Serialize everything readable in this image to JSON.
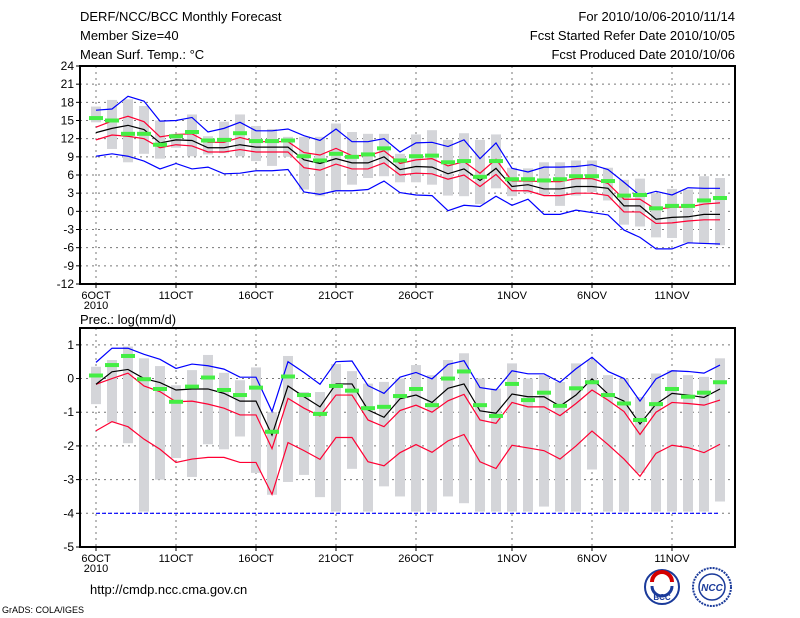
{
  "header": {
    "title": "DERF/NCC/BCC Monthly Forecast",
    "member_size": "Member Size=40",
    "variable": "Mean Surf. Temp.: °C",
    "period": "For 2010/10/06-2010/11/14",
    "refer_date": "Fcst Started Refer Date 2010/10/05",
    "produced_date": "Fcst Produced Date 2010/10/06"
  },
  "footer": {
    "url": "http://cmdp.ncc.cma.gov.cn",
    "credit": "GrADS: COLA/IGES",
    "logo_bcc": "BCC",
    "logo_ncc": "NCC"
  },
  "colors": {
    "ens_max_min": "#0000ff",
    "spread": "#ff0033",
    "mean": "#000000",
    "observed": "#44ee44",
    "bars": "#d4d5d9"
  },
  "chart_data": [
    {
      "type": "line",
      "title": "Mean Surf. Temp.: °C",
      "x_start": "2010-10-06",
      "n_days": 40,
      "x_tick_labels": [
        {
          "day": 0,
          "label": "6OCT",
          "sub": "2010"
        },
        {
          "day": 5,
          "label": "11OCT"
        },
        {
          "day": 10,
          "label": "16OCT"
        },
        {
          "day": 15,
          "label": "21OCT"
        },
        {
          "day": 20,
          "label": "26OCT"
        },
        {
          "day": 26,
          "label": "1NOV"
        },
        {
          "day": 31,
          "label": "6NOV"
        },
        {
          "day": 36,
          "label": "11NOV"
        }
      ],
      "ylim": [
        -12,
        24
      ],
      "y_ticks": [
        -12,
        -9,
        -6,
        -3,
        0,
        3,
        6,
        9,
        12,
        15,
        18,
        21,
        24
      ],
      "grid": true,
      "bars": {
        "high": [
          17.3,
          18.4,
          18.5,
          17.4,
          15.0,
          12.8,
          16.0,
          12.4,
          14.8,
          16.0,
          14.1,
          13.6,
          12.3,
          12.3,
          12.3,
          14.5,
          13.1,
          12.8,
          12.8,
          9.5,
          12.7,
          13.4,
          11.8,
          12.9,
          11.8,
          12.7,
          7.2,
          7.1,
          8.1,
          8.1,
          8.4,
          8.4,
          7.2,
          5.2,
          5.4,
          3.0,
          3.7,
          3.6,
          5.8,
          5.5
        ],
        "low": [
          14.7,
          10.3,
          8.1,
          9.5,
          8.7,
          10.5,
          9.1,
          9.4,
          9.6,
          9.1,
          8.3,
          7.5,
          9.0,
          3.6,
          2.5,
          3.4,
          4.4,
          5.5,
          5.8,
          4.8,
          4.8,
          4.4,
          2.6,
          2.5,
          1.2,
          3.8,
          2.5,
          3.0,
          2.7,
          0.9,
          2.6,
          3.2,
          1.8,
          -2.2,
          -2.5,
          -4.3,
          -4.4,
          -5.2,
          -5.4,
          -5.6
        ]
      },
      "series": [
        {
          "name": "ensemble max",
          "color": "#0000ff",
          "values": [
            16.7,
            16.9,
            19.0,
            18.2,
            14.9,
            15.0,
            15.5,
            13.1,
            13.7,
            14.7,
            13.3,
            13.3,
            13.6,
            12.5,
            11.7,
            13.6,
            11.5,
            11.5,
            12.0,
            9.8,
            11.3,
            11.4,
            10.7,
            11.8,
            8.7,
            11.3,
            7.1,
            6.5,
            7.3,
            7.3,
            7.4,
            7.7,
            6.9,
            4.8,
            2.6,
            3.3,
            2.7,
            3.9,
            3.8,
            3.8
          ]
        },
        {
          "name": "upper spread",
          "color": "#ff0033",
          "values": [
            13.9,
            14.9,
            15.7,
            14.8,
            12.3,
            12.7,
            12.8,
            11.4,
            11.4,
            12.2,
            11.5,
            11.5,
            11.5,
            9.7,
            9.3,
            10.4,
            9.2,
            9.2,
            10.0,
            7.9,
            8.5,
            8.7,
            7.5,
            8.2,
            6.3,
            8.6,
            5.0,
            5.0,
            4.9,
            4.9,
            5.4,
            5.4,
            4.6,
            2.0,
            2.0,
            0.3,
            0.7,
            0.7,
            1.2,
            1.4
          ]
        },
        {
          "name": "ensemble mean",
          "color": "#000000",
          "values": [
            13.0,
            13.7,
            14.2,
            13.5,
            11.3,
            11.8,
            11.7,
            10.5,
            10.5,
            11.0,
            10.6,
            10.6,
            10.6,
            8.5,
            7.9,
            8.7,
            8.0,
            8.0,
            9.0,
            6.9,
            7.4,
            7.3,
            6.2,
            7.0,
            5.1,
            7.1,
            4.1,
            4.4,
            3.7,
            3.7,
            4.1,
            4.1,
            3.8,
            0.9,
            0.9,
            -1.3,
            -1.0,
            -0.9,
            -0.5,
            -0.5
          ]
        },
        {
          "name": "lower spread",
          "color": "#ff0033",
          "values": [
            11.8,
            12.6,
            12.4,
            12.0,
            10.5,
            11.0,
            10.8,
            9.8,
            9.8,
            10.2,
            9.8,
            9.8,
            9.8,
            7.2,
            6.8,
            7.8,
            7.0,
            7.0,
            8.0,
            6.0,
            6.3,
            6.2,
            5.3,
            6.0,
            4.1,
            6.1,
            3.4,
            3.4,
            2.6,
            2.6,
            3.0,
            3.0,
            2.6,
            -0.1,
            -0.1,
            -2.0,
            -1.9,
            -1.6,
            -1.4,
            -1.4
          ]
        },
        {
          "name": "ensemble min",
          "color": "#0000ff",
          "values": [
            9.1,
            9.5,
            9.1,
            8.3,
            7.0,
            7.9,
            7.0,
            7.3,
            6.2,
            6.3,
            6.7,
            6.7,
            6.9,
            3.2,
            2.8,
            3.4,
            3.4,
            3.6,
            5.0,
            3.1,
            2.7,
            2.6,
            0.1,
            1.0,
            0.8,
            2.5,
            1.0,
            2.0,
            -0.5,
            -0.5,
            0.2,
            -0.2,
            -0.6,
            -3.1,
            -4.3,
            -6.2,
            -6.2,
            -5.2,
            -5.3,
            -5.4
          ]
        }
      ],
      "markers": {
        "name": "climatology/observed",
        "color": "#44ee44",
        "values": [
          15.4,
          15.0,
          12.8,
          12.8,
          11.0,
          12.4,
          13.1,
          11.7,
          11.8,
          12.9,
          11.6,
          11.6,
          11.7,
          9.1,
          8.4,
          9.5,
          9.0,
          9.4,
          10.4,
          8.4,
          9.1,
          9.2,
          8.1,
          8.3,
          5.7,
          8.3,
          5.3,
          5.3,
          5.1,
          5.3,
          5.8,
          5.8,
          5.0,
          2.6,
          2.7,
          0.5,
          0.9,
          0.9,
          1.8,
          2.2
        ]
      }
    },
    {
      "type": "line",
      "title": "Prec.: log(mm/d)",
      "x_start": "2010-10-06",
      "n_days": 40,
      "x_tick_labels": [
        {
          "day": 0,
          "label": "6OCT",
          "sub": "2010"
        },
        {
          "day": 5,
          "label": "11OCT"
        },
        {
          "day": 10,
          "label": "16OCT"
        },
        {
          "day": 15,
          "label": "21OCT"
        },
        {
          "day": 20,
          "label": "26OCT"
        },
        {
          "day": 26,
          "label": "1NOV"
        },
        {
          "day": 31,
          "label": "6NOV"
        },
        {
          "day": 36,
          "label": "11NOV"
        }
      ],
      "ylim": [
        -5,
        1.5
      ],
      "y_ticks": [
        -5,
        -4,
        -3,
        -2,
        -1,
        0,
        1
      ],
      "grid": true,
      "bars": {
        "high": [
          0.35,
          0.55,
          0.95,
          0.6,
          0.37,
          -0.2,
          0.25,
          0.7,
          0.17,
          -0.05,
          0.33,
          -1.0,
          0.67,
          -0.4,
          -0.4,
          0.43,
          0.22,
          -0.15,
          -0.1,
          0.0,
          0.4,
          0.1,
          0.55,
          0.75,
          0.0,
          -0.3,
          0.45,
          0.0,
          0.1,
          -0.1,
          0.45,
          0.55,
          0.1,
          0.0,
          -0.55,
          0.15,
          0.25,
          0.1,
          0.05,
          0.6
        ],
        "low": [
          -0.76,
          -1.3,
          -1.92,
          -3.95,
          -3.0,
          -2.36,
          -2.92,
          -1.95,
          -2.1,
          -1.72,
          -2.8,
          -3.45,
          -3.07,
          -2.86,
          -3.52,
          -3.95,
          -2.68,
          -3.95,
          -3.2,
          -3.5,
          -3.95,
          -3.95,
          -3.5,
          -3.7,
          -3.95,
          -3.95,
          -3.95,
          -3.95,
          -3.8,
          -3.95,
          -3.95,
          -2.7,
          -3.95,
          -3.95,
          -2.8,
          -3.95,
          -3.95,
          -3.95,
          -3.95,
          -3.65
        ]
      },
      "series": [
        {
          "name": "ensemble max",
          "color": "#0000ff",
          "values": [
            0.48,
            0.9,
            0.9,
            0.72,
            0.57,
            0.3,
            0.43,
            0.38,
            0.28,
            0.04,
            0.04,
            -0.98,
            0.5,
            0.18,
            -0.17,
            0.5,
            0.52,
            -0.21,
            -0.44,
            0.04,
            0.18,
            -0.01,
            0.42,
            0.53,
            -0.27,
            -0.34,
            0.23,
            0.14,
            0.14,
            -0.11,
            0.29,
            0.63,
            0.21,
            0.0,
            -0.67,
            -0.01,
            0.23,
            0.21,
            0.16,
            0.4
          ]
        },
        {
          "name": "upper spread",
          "color": "#ff0033",
          "values": [
            -0.17,
            0.0,
            0.16,
            -0.22,
            -0.39,
            -0.69,
            -0.67,
            -0.76,
            -0.88,
            -1.08,
            -1.08,
            -2.08,
            -0.59,
            -0.88,
            -1.11,
            -0.49,
            -0.49,
            -1.23,
            -1.43,
            -0.95,
            -0.79,
            -1.0,
            -0.66,
            -0.47,
            -1.23,
            -1.33,
            -0.71,
            -0.84,
            -0.84,
            -1.1,
            -0.74,
            -0.34,
            -0.64,
            -0.98,
            -1.66,
            -1.0,
            -0.71,
            -0.74,
            -0.79,
            -0.64
          ]
        },
        {
          "name": "ensemble mean",
          "color": "#000000",
          "values": [
            -0.17,
            0.2,
            0.27,
            0.0,
            -0.12,
            -0.34,
            -0.31,
            -0.31,
            -0.44,
            -0.67,
            -0.67,
            -1.68,
            -0.22,
            -0.54,
            -0.84,
            -0.16,
            -0.16,
            -0.93,
            -1.15,
            -0.6,
            -0.49,
            -0.71,
            -0.29,
            -0.16,
            -0.96,
            -1.03,
            -0.46,
            -0.54,
            -0.54,
            -0.82,
            -0.49,
            -0.01,
            -0.46,
            -0.67,
            -1.35,
            -0.76,
            -0.44,
            -0.49,
            -0.56,
            -0.31
          ]
        },
        {
          "name": "lower spread",
          "color": "#ff0033",
          "values": [
            -1.55,
            -1.28,
            -1.43,
            -1.8,
            -2.1,
            -2.49,
            -2.39,
            -2.34,
            -2.34,
            -2.49,
            -2.49,
            -3.44,
            -1.9,
            -2.14,
            -2.4,
            -1.75,
            -1.75,
            -2.47,
            -2.59,
            -2.2,
            -1.96,
            -2.19,
            -1.85,
            -1.66,
            -2.47,
            -2.67,
            -1.98,
            -2.06,
            -2.14,
            -2.39,
            -2.0,
            -1.56,
            -1.96,
            -2.39,
            -2.9,
            -2.22,
            -1.98,
            -2.05,
            -2.2,
            -1.95
          ]
        },
        {
          "name": "ensemble min",
          "color": "#0000ff",
          "dashed": true,
          "values": [
            -4,
            -4,
            -4,
            -4,
            -4,
            -4,
            -4,
            -4,
            -4,
            -4,
            -4,
            -4,
            -4,
            -4,
            -4,
            -4,
            -4,
            -4,
            -4,
            -4,
            -4,
            -4,
            -4,
            -4,
            -4,
            -4,
            -4,
            -4,
            -4,
            -4,
            -4,
            -4,
            -4,
            -4,
            -4,
            -4,
            -4,
            -4,
            -4,
            -4
          ]
        }
      ],
      "markers": {
        "name": "climatology/observed",
        "color": "#44ee44",
        "values": [
          0.09,
          0.4,
          0.67,
          -0.02,
          -0.31,
          -0.69,
          -0.24,
          0.03,
          -0.34,
          -0.49,
          -0.27,
          -1.58,
          0.06,
          -0.49,
          -1.05,
          -0.22,
          -0.36,
          -0.88,
          -0.84,
          -0.52,
          -0.31,
          -0.79,
          0.0,
          0.21,
          -0.79,
          -1.11,
          -0.16,
          -0.64,
          -0.42,
          -0.81,
          -0.29,
          -0.11,
          -0.49,
          -0.74,
          -1.23,
          -0.76,
          -0.31,
          -0.54,
          -0.42,
          -0.11
        ]
      }
    }
  ]
}
